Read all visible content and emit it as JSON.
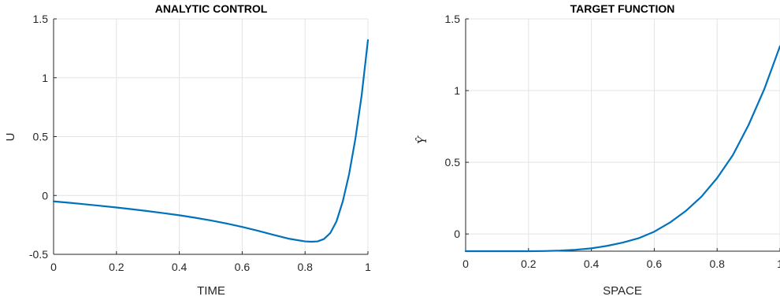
{
  "chart_data": [
    {
      "type": "line",
      "title": "ANALYTIC CONTROL",
      "xlabel": "TIME",
      "ylabel": "U",
      "xlim": [
        0,
        1
      ],
      "ylim": [
        -0.5,
        1.5
      ],
      "xticks": [
        "0",
        "0.2",
        "0.4",
        "0.6",
        "0.8",
        "1"
      ],
      "yticks": [
        "-0.5",
        "0",
        "0.5",
        "1",
        "1.5"
      ],
      "grid": true,
      "color": "#0072bd",
      "series": [
        {
          "x": [
            0,
            0.05,
            0.1,
            0.15,
            0.2,
            0.25,
            0.3,
            0.35,
            0.4,
            0.45,
            0.5,
            0.55,
            0.6,
            0.65,
            0.7,
            0.75,
            0.8,
            0.82,
            0.84,
            0.86,
            0.88,
            0.9,
            0.92,
            0.94,
            0.96,
            0.98,
            1.0
          ],
          "y": [
            -0.05,
            -0.062,
            -0.075,
            -0.088,
            -0.102,
            -0.117,
            -0.133,
            -0.15,
            -0.168,
            -0.189,
            -0.212,
            -0.238,
            -0.267,
            -0.3,
            -0.335,
            -0.368,
            -0.39,
            -0.393,
            -0.39,
            -0.37,
            -0.32,
            -0.22,
            -0.05,
            0.18,
            0.48,
            0.85,
            1.32
          ]
        }
      ]
    },
    {
      "type": "line",
      "title": "TARGET FUNCTION",
      "xlabel": "SPACE",
      "ylabel": "Ŷ",
      "xlim": [
        0,
        1
      ],
      "ylim": [
        -0.12,
        1.5
      ],
      "xticks": [
        "0",
        "0.2",
        "0.4",
        "0.6",
        "0.8",
        "1"
      ],
      "yticks": [
        "0",
        "0.5",
        "1",
        "1.5"
      ],
      "grid": true,
      "color": "#0072bd",
      "series": [
        {
          "x": [
            0,
            0.05,
            0.1,
            0.15,
            0.2,
            0.25,
            0.3,
            0.35,
            0.4,
            0.45,
            0.5,
            0.55,
            0.6,
            0.65,
            0.7,
            0.75,
            0.8,
            0.85,
            0.9,
            0.95,
            1.0
          ],
          "y": [
            -0.12,
            -0.12,
            -0.12,
            -0.12,
            -0.12,
            -0.119,
            -0.116,
            -0.11,
            -0.1,
            -0.083,
            -0.06,
            -0.03,
            0.016,
            0.08,
            0.16,
            0.26,
            0.39,
            0.55,
            0.76,
            1.01,
            1.31
          ]
        }
      ]
    }
  ]
}
